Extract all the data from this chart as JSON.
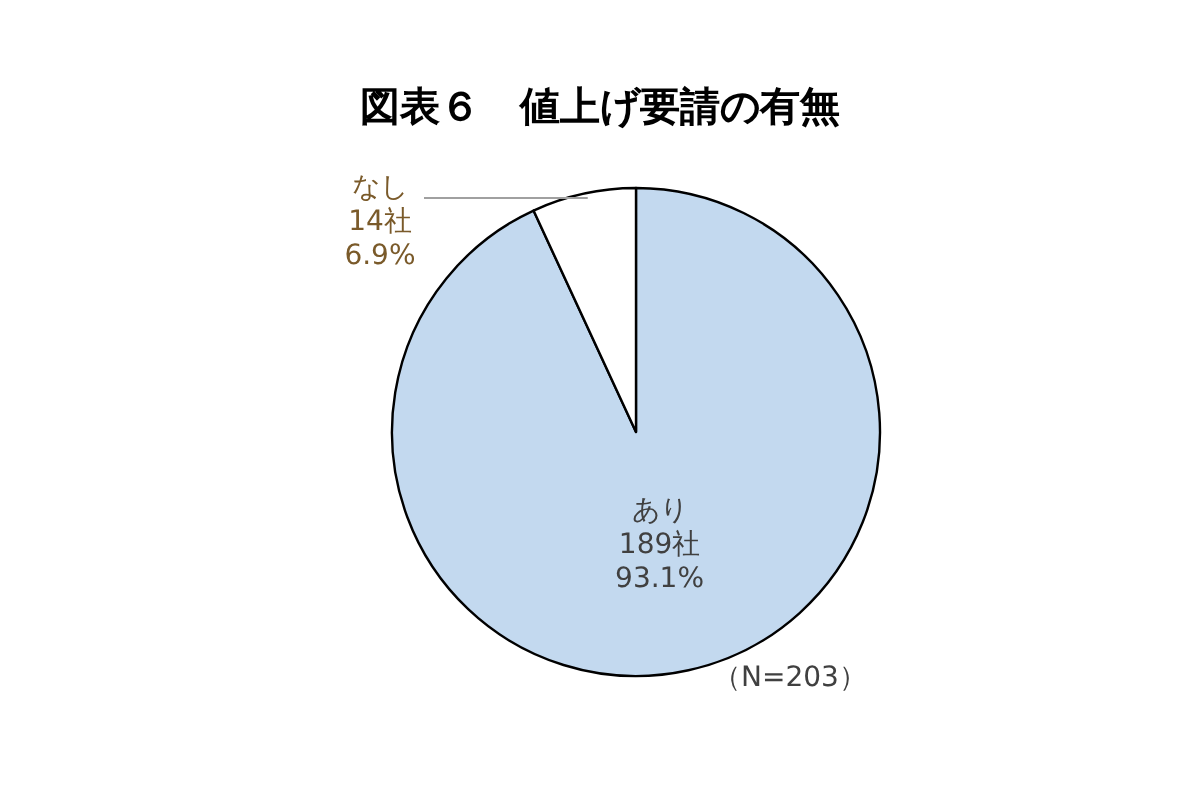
{
  "chart_data": {
    "type": "pie",
    "title": "図表６　値上げ要請の有無",
    "categories": [
      "あり",
      "なし"
    ],
    "values": [
      189,
      14
    ],
    "colors": [
      "#c3d9ef",
      "#ffffff"
    ],
    "value_labels": [
      "189社\n93.1%",
      "14社\n6.9%"
    ],
    "annotations": [
      "（N=203）"
    ]
  }
}
